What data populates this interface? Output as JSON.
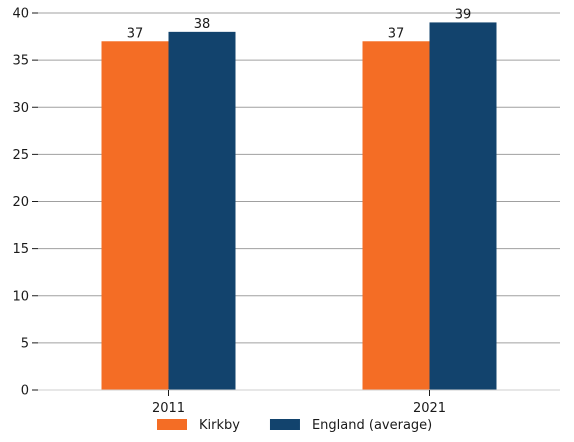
{
  "chart_data": {
    "type": "bar",
    "title": "",
    "xlabel": "",
    "ylabel": "",
    "categories": [
      "2011",
      "2021"
    ],
    "series": [
      {
        "name": "Kirkby",
        "values": [
          37,
          37
        ],
        "data_labels": [
          "37",
          "37"
        ],
        "color": "#f46d25"
      },
      {
        "name": "England (average)",
        "values": [
          38,
          39
        ],
        "data_labels": [
          "38",
          "39"
        ],
        "color": "#12436d"
      }
    ],
    "ylim": [
      0,
      40
    ],
    "yticks": [
      0,
      5,
      10,
      15,
      20,
      25,
      30,
      35,
      40
    ],
    "ytick_labels": [
      "0",
      "5",
      "10",
      "15",
      "20",
      "25",
      "30",
      "35",
      "40"
    ],
    "grid": "horizontal",
    "legend_position": "bottom-center",
    "colors": {
      "grid": "#a0a0a0",
      "axis": "#1a1a1a",
      "text": "#1a1a1a"
    }
  }
}
